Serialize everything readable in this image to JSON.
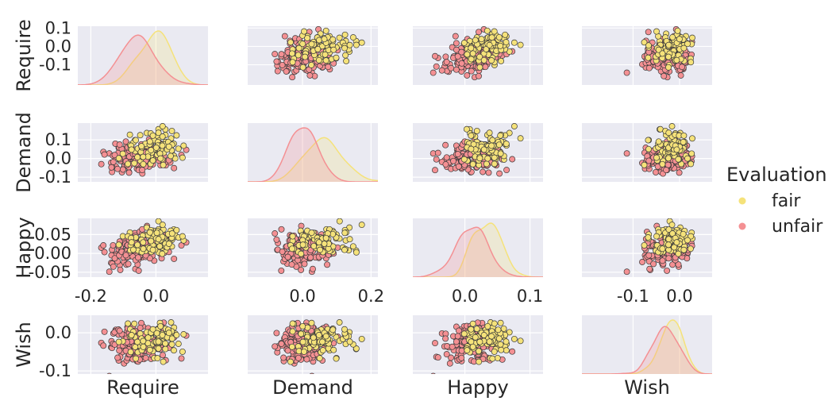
{
  "chart_data": {
    "type": "pairplot",
    "title": "",
    "variables": [
      "Require",
      "Demand",
      "Happy",
      "Wish"
    ],
    "hue_title": "Evaluation",
    "hue_levels": [
      {
        "name": "fair",
        "color": "#f5e27a"
      },
      {
        "name": "unfair",
        "color": "#f49093"
      }
    ],
    "background_color": "#eaeaf2",
    "ranges": {
      "Require": [
        -0.24,
        0.16
      ],
      "Demand": [
        -0.16,
        0.22
      ],
      "Happy": [
        -0.08,
        0.12
      ],
      "Wish": [
        -0.21,
        0.07
      ]
    },
    "y_ranges": {
      "Require": [
        -0.21,
        0.11
      ],
      "Demand": [
        -0.125,
        0.19
      ],
      "Happy": [
        -0.063,
        0.093
      ],
      "Wish": [
        -0.108,
        0.046
      ]
    },
    "y_ticks": {
      "Require": [
        "0.1",
        "0.0",
        "-0.1"
      ],
      "Demand": [
        "0.1",
        "0.0",
        "-0.1"
      ],
      "Happy": [
        "0.05",
        "0.00",
        "-0.05"
      ],
      "Wish": [
        "0.0",
        "-0.1"
      ]
    },
    "x_ticks": {
      "Require": [
        "-0.2",
        "0.0"
      ],
      "Demand": [
        "0.0",
        "0.2"
      ],
      "Happy": [
        "0.0",
        "0.1"
      ],
      "Wish": [
        "-0.1",
        "0.0"
      ]
    },
    "groups": {
      "fair": {
        "n": 90,
        "mean": {
          "Require": -0.005,
          "Demand": 0.06,
          "Happy": 0.033,
          "Wish": -0.018
        },
        "sd": {
          "Require": 0.045,
          "Demand": 0.05,
          "Happy": 0.018,
          "Wish": 0.022
        }
      },
      "unfair": {
        "n": 160,
        "mean": {
          "Require": -0.05,
          "Demand": 0.005,
          "Happy": 0.01,
          "Wish": -0.028
        },
        "sd": {
          "Require": 0.05,
          "Demand": 0.035,
          "Happy": 0.02,
          "Wish": 0.025
        }
      }
    }
  }
}
